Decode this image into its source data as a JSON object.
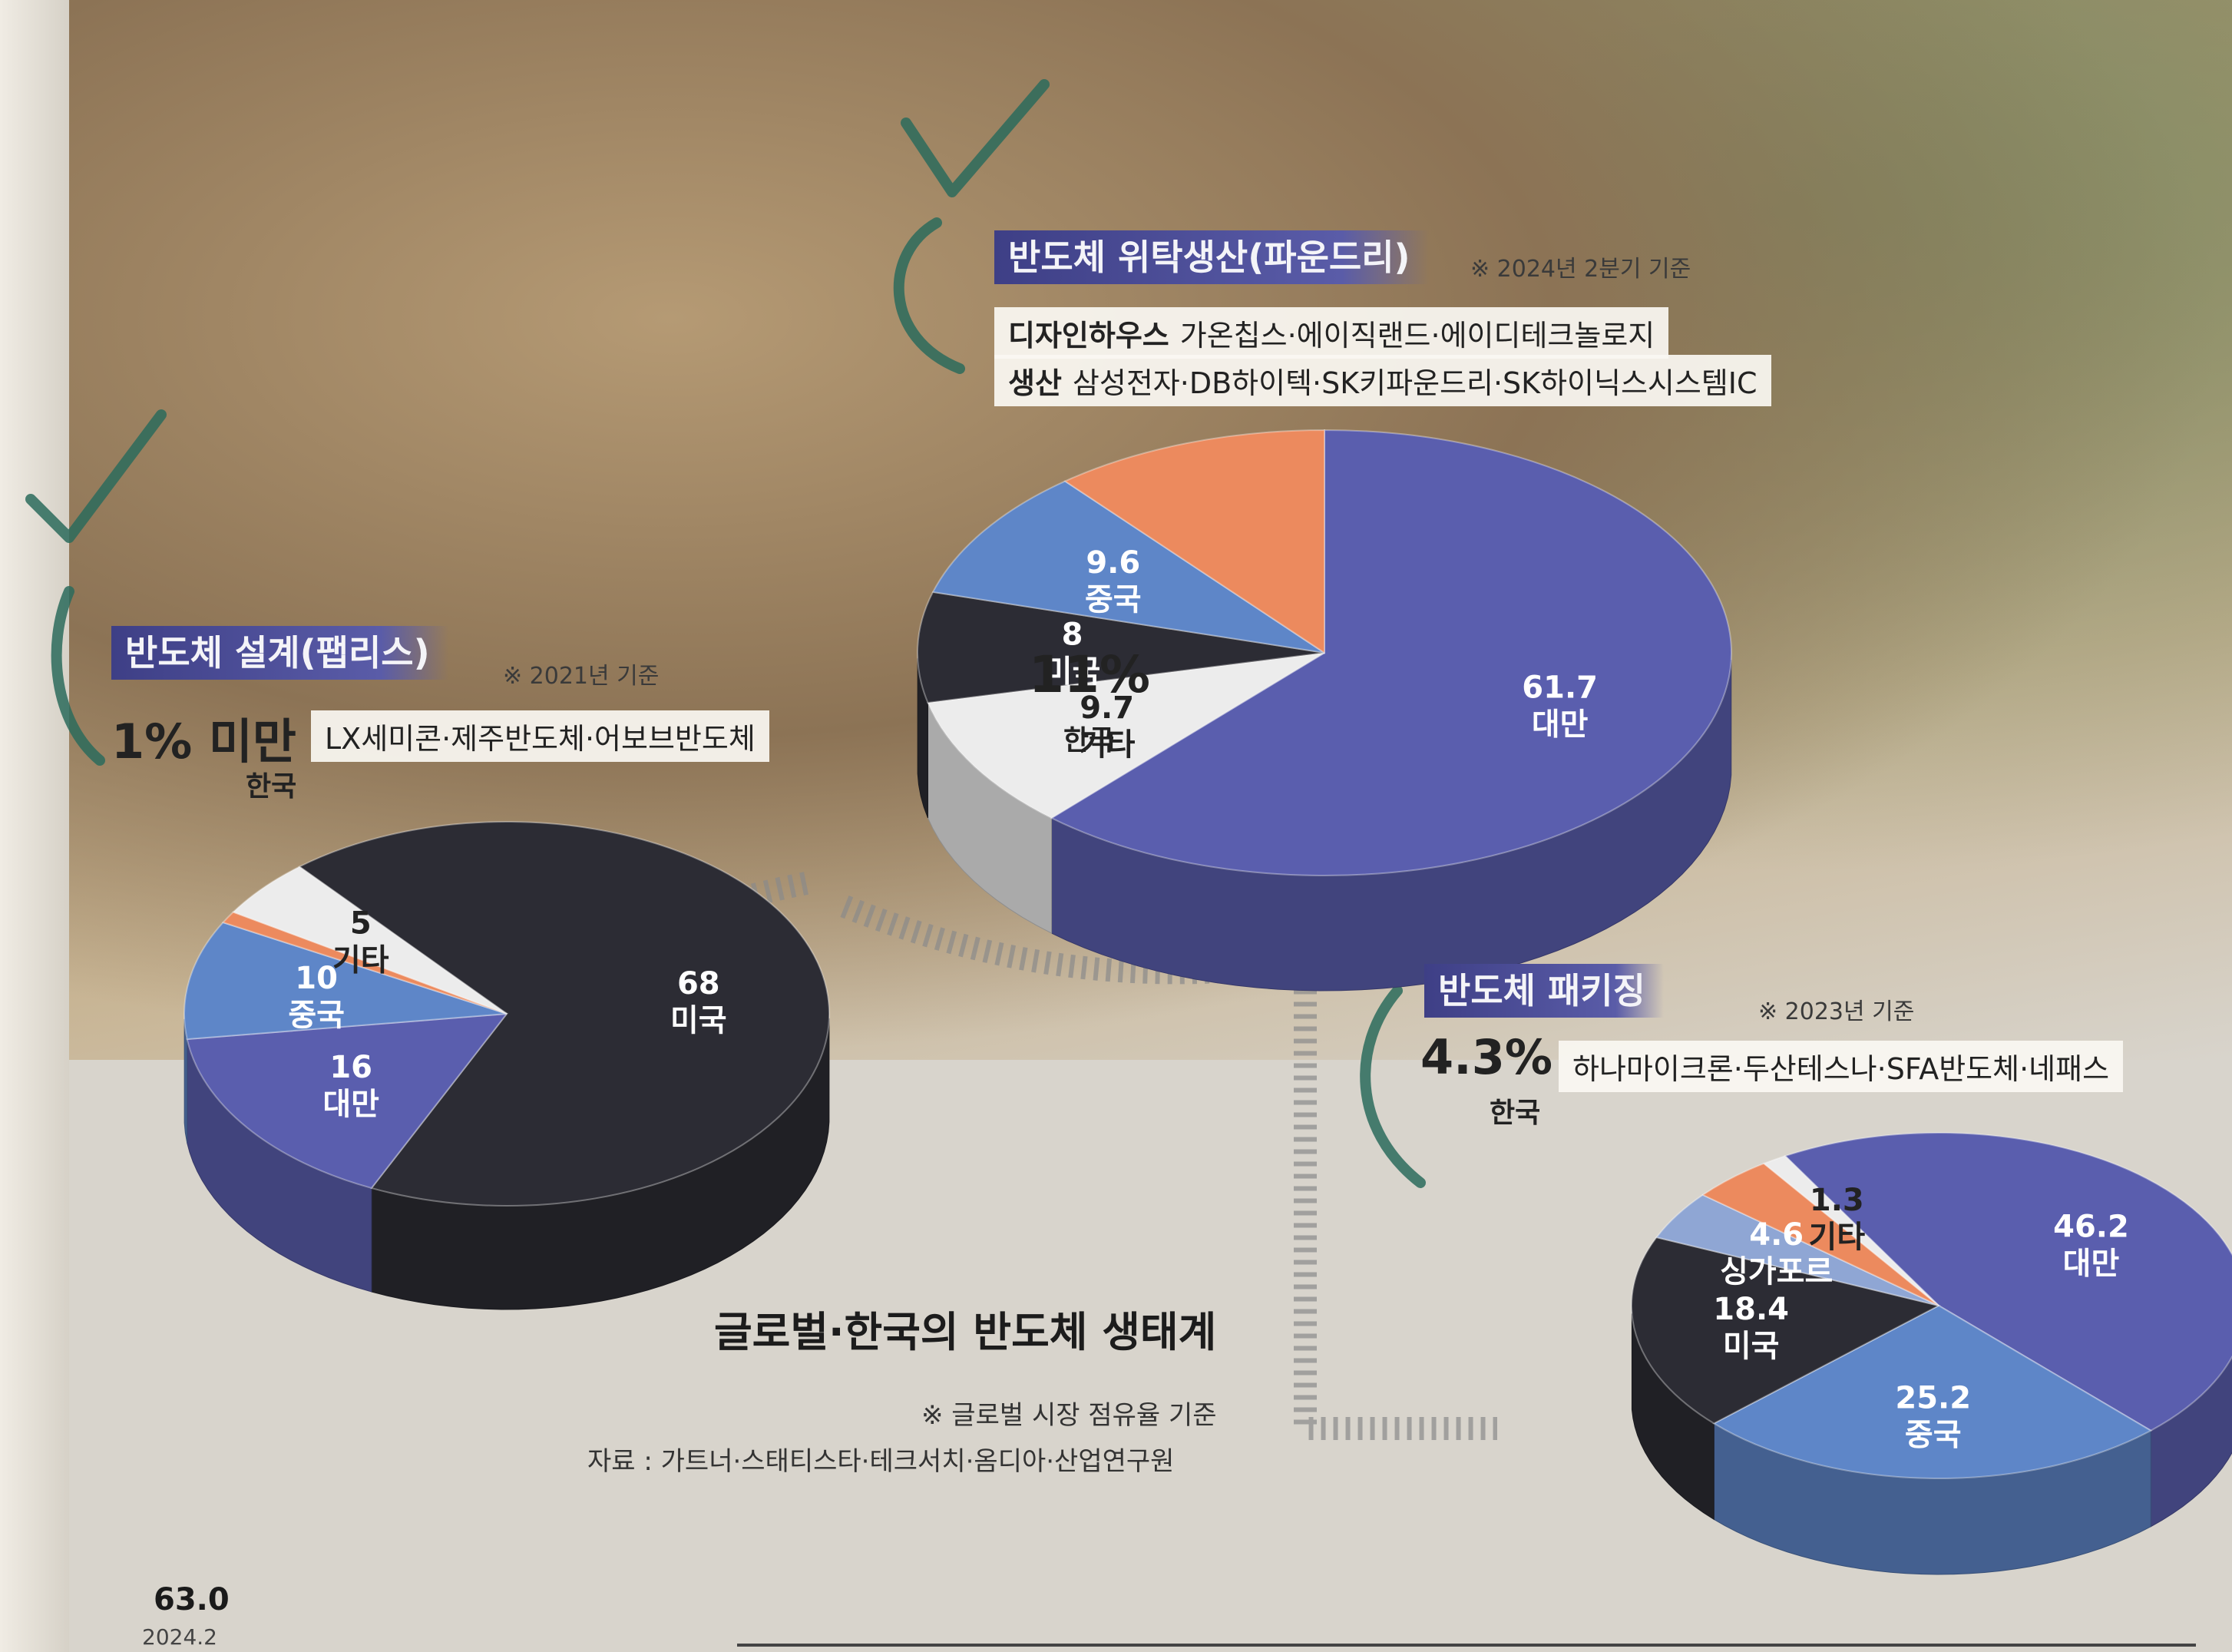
{
  "main_title": "글로벌·한국의 반도체 생태계",
  "footnote": "※ 글로벌 시장 점유율 기준",
  "source": "자료 : 가트너·스태티스타·테크서치·옴디아·산업연구원",
  "page_number": "63.0",
  "page_date": "2024.2",
  "colors": {
    "taiwan": "#5a5eae",
    "usa": "#2c2c34",
    "china": "#5e86c8",
    "korea": "#ec8a5e",
    "other": "#ececec",
    "singapore": "#8fa6d4"
  },
  "chart_data": [
    {
      "type": "pie",
      "title": "반도체 위탁생산(파운드리)",
      "basis": "※ 2024년 2분기 기준",
      "korea_share_label": "11%",
      "korea_label": "한국",
      "companies": [
        {
          "category": "디자인하우스",
          "names": "가온칩스·에이직랜드·에이디테크놀로지"
        },
        {
          "category": "생산",
          "names": "삼성전자·DB하이텍·SK키파운드리·SK하이닉스시스템IC"
        }
      ],
      "slices": [
        {
          "label": "대만",
          "value": 61.7,
          "value_text": "61.7",
          "color_key": "taiwan"
        },
        {
          "label": "기타",
          "value": 9.7,
          "value_text": "9.7",
          "color_key": "other"
        },
        {
          "label": "미국",
          "value": 8,
          "value_text": "8",
          "color_key": "usa"
        },
        {
          "label": "중국",
          "value": 9.6,
          "value_text": "9.6",
          "color_key": "china"
        },
        {
          "label": "한국",
          "value": 11,
          "value_text": "",
          "color_key": "korea"
        }
      ]
    },
    {
      "type": "pie",
      "title": "반도체 설계(팹리스)",
      "basis": "※ 2021년 기준",
      "korea_share_label": "1% 미만",
      "korea_label": "한국",
      "companies": [
        {
          "category": "",
          "names": "LX세미콘·제주반도체·어보브반도체"
        }
      ],
      "slices": [
        {
          "label": "미국",
          "value": 68,
          "value_text": "68",
          "color_key": "usa"
        },
        {
          "label": "대만",
          "value": 16,
          "value_text": "16",
          "color_key": "taiwan"
        },
        {
          "label": "중국",
          "value": 10,
          "value_text": "10",
          "color_key": "china"
        },
        {
          "label": "한국",
          "value": 1,
          "value_text": "",
          "color_key": "korea"
        },
        {
          "label": "기타",
          "value": 5,
          "value_text": "5",
          "color_key": "other"
        }
      ]
    },
    {
      "type": "pie",
      "title": "반도체 패키징",
      "basis": "※ 2023년 기준",
      "korea_share_label": "4.3%",
      "korea_label": "한국",
      "companies": [
        {
          "category": "",
          "names": "하나마이크론·두산테스나·SFA반도체·네패스"
        }
      ],
      "slices": [
        {
          "label": "대만",
          "value": 46.2,
          "value_text": "46.2",
          "color_key": "taiwan"
        },
        {
          "label": "중국",
          "value": 25.2,
          "value_text": "25.2",
          "color_key": "china"
        },
        {
          "label": "미국",
          "value": 18.4,
          "value_text": "18.4",
          "color_key": "usa"
        },
        {
          "label": "싱가포르",
          "value": 4.6,
          "value_text": "4.6",
          "color_key": "singapore"
        },
        {
          "label": "한국",
          "value": 4.3,
          "value_text": "",
          "color_key": "korea"
        },
        {
          "label": "기타",
          "value": 1.3,
          "value_text": "1.3",
          "color_key": "other"
        }
      ]
    }
  ]
}
